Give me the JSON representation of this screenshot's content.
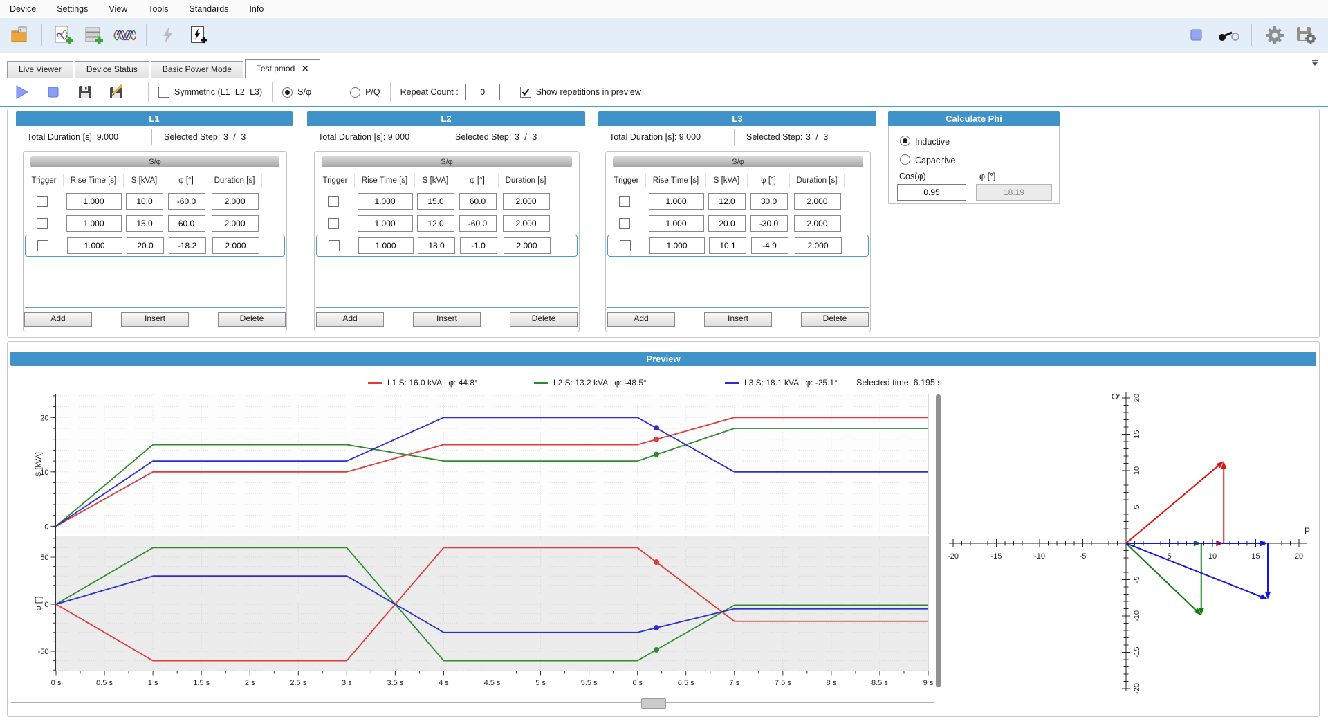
{
  "menu": {
    "items": [
      "Device",
      "Settings",
      "View",
      "Tools",
      "Standards",
      "Info"
    ]
  },
  "toolbar": {
    "left_icons": [
      "open-curve-file-icon",
      "new-curve-icon",
      "new-table-icon",
      "waveform-icon",
      "flash-disabled-icon",
      "new-flash-file-icon"
    ],
    "right_icons": [
      "stop-square-icon",
      "probe-toggle-icon",
      "settings-gear-icon",
      "save-settings-icon"
    ]
  },
  "tabs": [
    {
      "label": "Live Viewer",
      "active": false
    },
    {
      "label": "Device Status",
      "active": false
    },
    {
      "label": "Basic Power Mode",
      "active": false
    },
    {
      "label": "Test.pmod",
      "active": true,
      "close": "✕"
    }
  ],
  "subtoolbar": {
    "symmetric_label": "Symmetric (L1=L2=L3)",
    "symmetric_checked": false,
    "radio_sphi": "S/φ",
    "radio_pq": "P/Q",
    "radio_selected": "S/φ",
    "repeat_count_label": "Repeat Count :",
    "repeat_count_value": "0",
    "show_repetitions_label": "Show repetitions in preview",
    "show_repetitions_checked": true
  },
  "phase_columns": [
    "Trigger",
    "Rise Time [s]",
    "S [kVA]",
    "φ [°]",
    "Duration [s]"
  ],
  "phases": [
    {
      "title": "L1",
      "total_duration_label": "Total Duration [s]:",
      "total_duration": "9.000",
      "selected_step_label": "Selected Step:",
      "selected_step": "3 / 3",
      "mode_label": "S/φ",
      "rows": [
        {
          "rise": "1.000",
          "s": "10.0",
          "phi": "-60.0",
          "dur": "2.000",
          "selected": false
        },
        {
          "rise": "1.000",
          "s": "15.0",
          "phi": "60.0",
          "dur": "2.000",
          "selected": false
        },
        {
          "rise": "1.000",
          "s": "20.0",
          "phi": "-18.2",
          "dur": "2.000",
          "selected": true
        }
      ],
      "buttons": {
        "add": "Add",
        "insert": "Insert",
        "delete": "Delete"
      }
    },
    {
      "title": "L2",
      "total_duration_label": "Total Duration [s]:",
      "total_duration": "9.000",
      "selected_step_label": "Selected Step:",
      "selected_step": "3 / 3",
      "mode_label": "S/φ",
      "rows": [
        {
          "rise": "1.000",
          "s": "15.0",
          "phi": "60.0",
          "dur": "2.000",
          "selected": false
        },
        {
          "rise": "1.000",
          "s": "12.0",
          "phi": "-60.0",
          "dur": "2.000",
          "selected": false
        },
        {
          "rise": "1.000",
          "s": "18.0",
          "phi": "-1.0",
          "dur": "2.000",
          "selected": true
        }
      ],
      "buttons": {
        "add": "Add",
        "insert": "Insert",
        "delete": "Delete"
      }
    },
    {
      "title": "L3",
      "total_duration_label": "Total Duration [s]:",
      "total_duration": "9.000",
      "selected_step_label": "Selected Step:",
      "selected_step": "3 / 3",
      "mode_label": "S/φ",
      "rows": [
        {
          "rise": "1.000",
          "s": "12.0",
          "phi": "30.0",
          "dur": "2.000",
          "selected": false
        },
        {
          "rise": "1.000",
          "s": "20.0",
          "phi": "-30.0",
          "dur": "2.000",
          "selected": false
        },
        {
          "rise": "1.000",
          "s": "10.1",
          "phi": "-4.9",
          "dur": "2.000",
          "selected": true
        }
      ],
      "buttons": {
        "add": "Add",
        "insert": "Insert",
        "delete": "Delete"
      }
    }
  ],
  "calculate_phi": {
    "title": "Calculate Phi",
    "option_inductive": "Inductive",
    "option_capacitive": "Capacitive",
    "selected_option": "Inductive",
    "cos_label": "Cos(φ)",
    "cos_value": "0.95",
    "phi_label": "φ [°]",
    "phi_value": "18.19"
  },
  "preview": {
    "title": "Preview",
    "legend": [
      {
        "label": "L1 S: 16.0 kVA | φ: 44.8°",
        "color": "#e03a3a"
      },
      {
        "label": "L2 S: 13.2 kVA | φ: -48.5°",
        "color": "#2e8b2e"
      },
      {
        "label": "L3 S: 18.1 kVA | φ: -25.1°",
        "color": "#2d2dd0"
      }
    ],
    "selected_time_label": "Selected time: 6.195 s",
    "selected_time": 6.195
  },
  "chart_data": [
    {
      "type": "line",
      "name": "s-vs-time",
      "ylabel": "S [kVA]",
      "x_range": [
        0,
        9
      ],
      "y_ticks": [
        0,
        10,
        20
      ],
      "y_minor_step": 2,
      "y_minor_range": [
        0,
        24
      ],
      "x_tick_labels": [
        "0 s",
        "0.5 s",
        "1 s",
        "1.5 s",
        "2 s",
        "2.5 s",
        "3 s",
        "3.5 s",
        "4 s",
        "4.5 s",
        "5 s",
        "5.5 s",
        "6 s",
        "6.5 s",
        "7 s",
        "7.5 s",
        "8 s",
        "8.5 s",
        "9 s"
      ],
      "marker_x": 6.195,
      "series": [
        {
          "name": "L1",
          "color": "#e03a3a",
          "marker_y": 16.0,
          "points": [
            [
              0,
              0
            ],
            [
              1,
              10
            ],
            [
              3,
              10
            ],
            [
              4,
              15
            ],
            [
              6,
              15
            ],
            [
              7,
              20
            ],
            [
              9,
              20
            ]
          ]
        },
        {
          "name": "L2",
          "color": "#2e8b2e",
          "marker_y": 13.2,
          "points": [
            [
              0,
              0
            ],
            [
              1,
              15
            ],
            [
              3,
              15
            ],
            [
              4,
              12
            ],
            [
              6,
              12
            ],
            [
              7,
              18
            ],
            [
              9,
              18
            ]
          ]
        },
        {
          "name": "L3",
          "color": "#2d2dd0",
          "marker_y": 18.1,
          "points": [
            [
              0,
              0
            ],
            [
              1,
              12
            ],
            [
              3,
              12
            ],
            [
              4,
              20
            ],
            [
              6,
              20
            ],
            [
              7,
              10
            ],
            [
              9,
              10
            ]
          ]
        }
      ]
    },
    {
      "type": "line",
      "name": "phi-vs-time",
      "ylabel": "φ [°]",
      "x_range": [
        0,
        9
      ],
      "y_ticks": [
        -50,
        0,
        50
      ],
      "y_minor_step": 10,
      "y_minor_range": [
        -70,
        70
      ],
      "marker_x": 6.195,
      "series": [
        {
          "name": "L1",
          "color": "#e03a3a",
          "marker_y": 44.8,
          "points": [
            [
              0,
              0
            ],
            [
              1,
              -60
            ],
            [
              3,
              -60
            ],
            [
              4,
              60
            ],
            [
              6,
              60
            ],
            [
              7,
              -18.2
            ],
            [
              9,
              -18.2
            ]
          ]
        },
        {
          "name": "L2",
          "color": "#2e8b2e",
          "marker_y": -48.5,
          "points": [
            [
              0,
              0
            ],
            [
              1,
              60
            ],
            [
              3,
              60
            ],
            [
              4,
              -60
            ],
            [
              6,
              -60
            ],
            [
              7,
              -1
            ],
            [
              9,
              -1
            ]
          ]
        },
        {
          "name": "L3",
          "color": "#2d2dd0",
          "marker_y": -25.1,
          "points": [
            [
              0,
              0
            ],
            [
              1,
              30
            ],
            [
              3,
              30
            ],
            [
              4,
              -30
            ],
            [
              6,
              -30
            ],
            [
              7,
              -4.9
            ],
            [
              9,
              -4.9
            ]
          ]
        }
      ]
    },
    {
      "type": "vector",
      "name": "pq-vector",
      "xlabel": "P",
      "ylabel": "Q",
      "x_range": [
        -20,
        20
      ],
      "y_range": [
        -20,
        20
      ],
      "x_tick_labels": [
        "-20",
        "-15",
        "-10",
        "-5",
        "5",
        "10",
        "15",
        "20"
      ],
      "y_tick_labels": [
        "20",
        "10",
        "-10",
        "-20"
      ],
      "labeled_tick_step": 5,
      "vectors": [
        {
          "name": "L1",
          "color": "#dd1515",
          "p": 11.3,
          "q": 11.3
        },
        {
          "name": "L2",
          "color": "#0e7d0e",
          "p": 8.7,
          "q": -9.9
        },
        {
          "name": "L3",
          "color": "#1515dd",
          "p": 16.4,
          "q": -7.7
        }
      ]
    }
  ]
}
